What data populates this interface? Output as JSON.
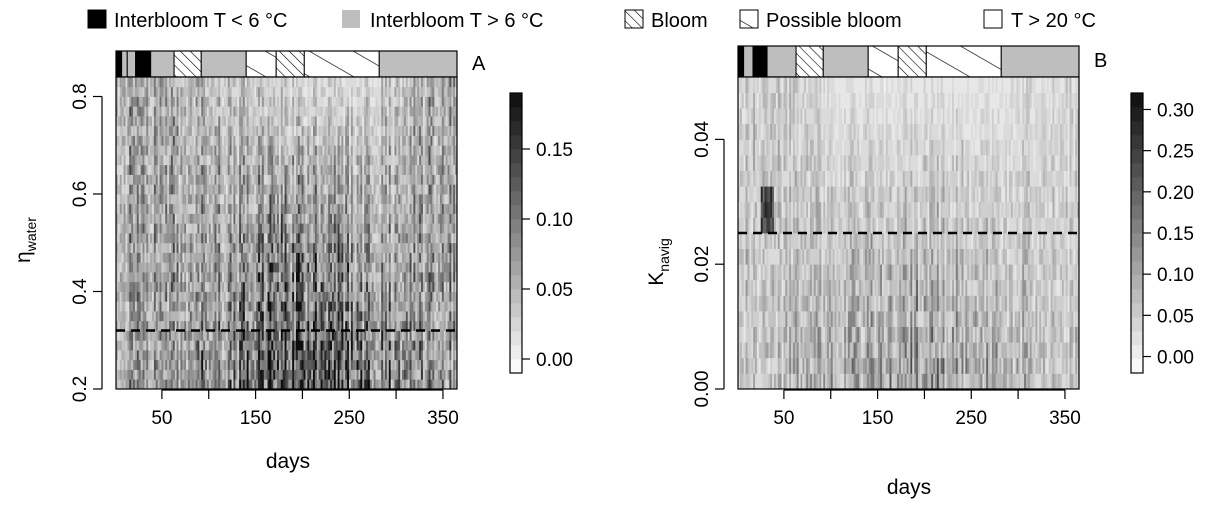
{
  "legend": {
    "items": [
      {
        "label": "Interbloom T < 6 °C",
        "fill": "#000000",
        "pattern": "none"
      },
      {
        "label": "Interbloom T > 6 °C",
        "fill": "#bebebe",
        "pattern": "none"
      },
      {
        "label": "Bloom",
        "fill": "#ffffff",
        "pattern": "hatch-dense"
      },
      {
        "label": "Possible bloom",
        "fill": "#ffffff",
        "pattern": "hatch-sparse"
      },
      {
        "label": "T > 20 °C",
        "fill": "#ffffff",
        "pattern": "none"
      }
    ]
  },
  "chart_data": [
    {
      "type": "heatmap",
      "panel_label": "A",
      "xlabel": "days",
      "ylabel": "η",
      "ylabel_sub": "water",
      "xlim": [
        1,
        365
      ],
      "ylim": [
        0.2,
        0.84
      ],
      "xticks": [
        50,
        150,
        250,
        350
      ],
      "xticks_minor": [
        100,
        200,
        300
      ],
      "yticks": [
        0.2,
        0.4,
        0.6,
        0.8
      ],
      "reference_line": {
        "y": 0.32,
        "style": "dashed"
      },
      "y_bins": [
        0.21,
        0.23,
        0.25,
        0.27,
        0.29,
        0.31,
        0.33,
        0.35,
        0.37,
        0.39,
        0.41,
        0.43,
        0.45,
        0.47,
        0.49,
        0.51,
        0.53,
        0.55,
        0.57,
        0.59,
        0.61,
        0.63,
        0.65,
        0.67,
        0.69,
        0.71,
        0.73,
        0.75,
        0.77,
        0.79,
        0.81,
        0.83
      ],
      "profile_by_season": {
        "days": [
          1,
          40,
          80,
          120,
          160,
          200,
          240,
          280,
          320,
          365
        ],
        "low_y_intensity": [
          0.07,
          0.07,
          0.08,
          0.09,
          0.12,
          0.14,
          0.13,
          0.1,
          0.08,
          0.07
        ],
        "high_y_intensity": [
          0.06,
          0.06,
          0.05,
          0.04,
          0.03,
          0.02,
          0.02,
          0.03,
          0.05,
          0.06
        ]
      },
      "colorbar": {
        "ticks": [
          0.0,
          0.05,
          0.1,
          0.15
        ],
        "tick_labels": [
          "0.00",
          "0.05",
          "0.10",
          "0.15"
        ],
        "range": [
          -0.01,
          0.19
        ],
        "levels": 20
      },
      "season_bar": [
        {
          "from": 1,
          "to": 7,
          "category": "Interbloom T < 6 °C"
        },
        {
          "from": 7,
          "to": 13,
          "category": "Interbloom T > 6 °C"
        },
        {
          "from": 13,
          "to": 22,
          "category": "Interbloom T > 6 °C"
        },
        {
          "from": 22,
          "to": 38,
          "category": "Interbloom T < 6 °C"
        },
        {
          "from": 38,
          "to": 63,
          "category": "Interbloom T > 6 °C"
        },
        {
          "from": 63,
          "to": 92,
          "category": "Bloom"
        },
        {
          "from": 92,
          "to": 140,
          "category": "Interbloom T > 6 °C"
        },
        {
          "from": 140,
          "to": 172,
          "category": "Possible bloom"
        },
        {
          "from": 172,
          "to": 202,
          "category": "Bloom"
        },
        {
          "from": 202,
          "to": 282,
          "category": "Possible bloom"
        },
        {
          "from": 282,
          "to": 365,
          "category": "Interbloom T > 6 °C"
        }
      ]
    },
    {
      "type": "heatmap",
      "panel_label": "B",
      "xlabel": "days",
      "ylabel": "K",
      "ylabel_sub": "navig",
      "xlim": [
        1,
        365
      ],
      "ylim": [
        0,
        0.05
      ],
      "xticks": [
        50,
        150,
        250,
        350
      ],
      "xticks_minor": [
        100,
        200,
        300
      ],
      "yticks": [
        0.0,
        0.02,
        0.04
      ],
      "reference_line": {
        "y": 0.025,
        "style": "dashed"
      },
      "y_bins": [
        0.00125,
        0.00375,
        0.00625,
        0.00875,
        0.01125,
        0.01375,
        0.01625,
        0.01875,
        0.02125,
        0.02375,
        0.02625,
        0.02875,
        0.03125,
        0.03375,
        0.03625,
        0.03875,
        0.04125,
        0.04375,
        0.04625,
        0.04875
      ],
      "profile_by_season": {
        "days": [
          1,
          40,
          80,
          120,
          160,
          200,
          240,
          280,
          320,
          365
        ],
        "low_y_intensity": [
          0.06,
          0.07,
          0.08,
          0.1,
          0.11,
          0.12,
          0.11,
          0.09,
          0.07,
          0.06
        ],
        "high_y_intensity": [
          0.05,
          0.05,
          0.03,
          0.02,
          0.02,
          0.02,
          0.02,
          0.02,
          0.03,
          0.04
        ]
      },
      "hotspot": {
        "day_from": 25,
        "day_to": 40,
        "y_from": 0.024,
        "y_to": 0.033,
        "intensity": 0.31
      },
      "colorbar": {
        "ticks": [
          0.0,
          0.05,
          0.1,
          0.15,
          0.2,
          0.25,
          0.3
        ],
        "tick_labels": [
          "0.00",
          "0.05",
          "0.10",
          "0.15",
          "0.20",
          "0.25",
          "0.30"
        ],
        "range": [
          -0.02,
          0.32
        ],
        "levels": 20
      },
      "season_bar": [
        {
          "from": 1,
          "to": 7,
          "category": "Interbloom T < 6 °C"
        },
        {
          "from": 7,
          "to": 17,
          "category": "Interbloom T > 6 °C"
        },
        {
          "from": 17,
          "to": 32,
          "category": "Interbloom T < 6 °C"
        },
        {
          "from": 32,
          "to": 63,
          "category": "Interbloom T > 6 °C"
        },
        {
          "from": 63,
          "to": 92,
          "category": "Bloom"
        },
        {
          "from": 92,
          "to": 140,
          "category": "Interbloom T > 6 °C"
        },
        {
          "from": 140,
          "to": 172,
          "category": "Possible bloom"
        },
        {
          "from": 172,
          "to": 202,
          "category": "Bloom"
        },
        {
          "from": 202,
          "to": 282,
          "category": "Possible bloom"
        },
        {
          "from": 282,
          "to": 365,
          "category": "Interbloom T > 6 °C"
        }
      ]
    }
  ]
}
